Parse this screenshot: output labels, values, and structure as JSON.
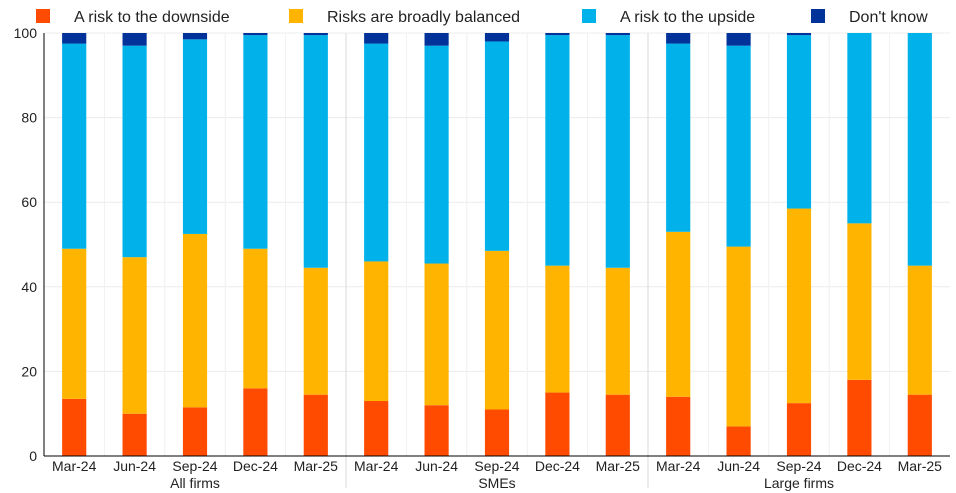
{
  "chart_data": {
    "type": "bar",
    "stacked": true,
    "ylim": [
      0,
      100
    ],
    "yticks": [
      0,
      20,
      40,
      60,
      80,
      100
    ],
    "grid": true,
    "legend_position": "top",
    "groups": [
      {
        "label": "All firms",
        "categories": [
          "Mar-24",
          "Jun-24",
          "Sep-24",
          "Dec-24",
          "Mar-25"
        ]
      },
      {
        "label": "SMEs",
        "categories": [
          "Mar-24",
          "Jun-24",
          "Sep-24",
          "Dec-24",
          "Mar-25"
        ]
      },
      {
        "label": "Large firms",
        "categories": [
          "Mar-24",
          "Jun-24",
          "Sep-24",
          "Dec-24",
          "Mar-25"
        ]
      }
    ],
    "series": [
      {
        "name": "A risk to the downside",
        "color": "#ff4b00",
        "values": [
          13.5,
          10.0,
          11.5,
          16.0,
          14.5,
          13.0,
          12.0,
          11.0,
          15.0,
          14.5,
          14.0,
          7.0,
          12.5,
          18.0,
          14.5
        ]
      },
      {
        "name": "Risks are broadly balanced",
        "color": "#ffb400",
        "values": [
          35.5,
          37.0,
          41.0,
          33.0,
          30.0,
          33.0,
          33.5,
          37.5,
          30.0,
          30.0,
          39.0,
          42.5,
          46.0,
          37.0,
          30.5
        ]
      },
      {
        "name": "A risk to the upside",
        "color": "#00b1ea",
        "values": [
          48.5,
          50.0,
          46.0,
          50.5,
          55.0,
          51.5,
          51.5,
          49.5,
          54.5,
          55.0,
          44.5,
          47.5,
          41.0,
          45.0,
          55.0
        ]
      },
      {
        "name": "Don't know",
        "color": "#003299",
        "values": [
          2.5,
          3.0,
          1.5,
          0.5,
          0.5,
          2.5,
          3.0,
          2.0,
          0.5,
          0.5,
          2.5,
          3.0,
          0.5,
          0.0,
          0.0
        ]
      }
    ]
  }
}
